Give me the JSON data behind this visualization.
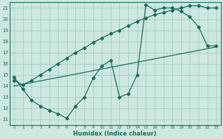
{
  "xlabel": "Humidex (Indice chaleur)",
  "bg_color": "#cce8e0",
  "grid_color": "#aad0c8",
  "line_color": "#1a6b5a",
  "xlim": [
    -0.5,
    23.5
  ],
  "ylim": [
    10.5,
    21.5
  ],
  "xticks": [
    0,
    1,
    2,
    3,
    4,
    5,
    6,
    7,
    8,
    9,
    10,
    11,
    12,
    13,
    14,
    15,
    16,
    17,
    18,
    19,
    20,
    21,
    22,
    23
  ],
  "yticks": [
    11,
    12,
    13,
    14,
    15,
    16,
    17,
    18,
    19,
    20,
    21
  ],
  "line1_x": [
    0,
    1,
    2,
    3,
    4,
    5,
    6,
    7,
    8,
    9,
    10,
    11,
    12,
    13,
    14,
    15,
    16,
    17,
    18,
    19,
    20,
    21,
    22,
    23
  ],
  "line1_y": [
    14.8,
    13.7,
    12.7,
    12.2,
    11.8,
    11.5,
    11.1,
    12.2,
    13.0,
    14.7,
    15.8,
    16.3,
    13.0,
    13.3,
    15.0,
    21.3,
    20.8,
    21.0,
    21.0,
    20.7,
    20.2,
    19.3,
    17.6,
    17.6
  ],
  "line2_x": [
    0,
    1,
    2,
    3,
    4,
    5,
    6,
    7,
    8,
    9,
    10,
    11,
    12,
    13,
    14,
    15,
    16,
    17,
    18,
    19,
    20,
    21,
    22,
    23
  ],
  "line2_y": [
    14.5,
    14.1,
    14.5,
    15.0,
    15.5,
    16.0,
    16.5,
    17.0,
    17.4,
    17.9,
    18.3,
    18.7,
    19.0,
    19.4,
    19.8,
    20.1,
    20.4,
    20.6,
    20.8,
    21.0,
    21.2,
    21.2,
    21.0,
    21.0
  ],
  "line3_x": [
    0,
    23
  ],
  "line3_y": [
    14.0,
    17.5
  ]
}
